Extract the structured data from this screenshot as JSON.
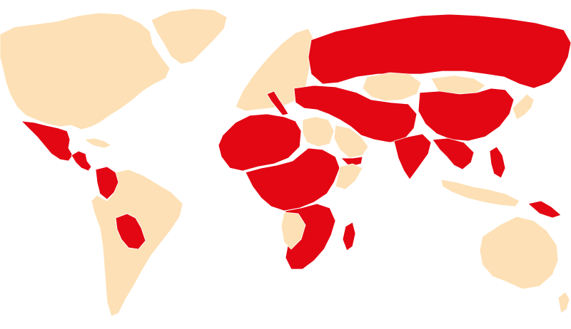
{
  "colors": {
    "background": "#ffffff",
    "highlighted": "#e30613",
    "other": "#fde0b5",
    "border": "#ffffff"
  },
  "regions": [
    {
      "id": "greenland",
      "status": "other"
    },
    {
      "id": "north-america",
      "status": "other"
    },
    {
      "id": "mexico",
      "status": "highlighted"
    },
    {
      "id": "central-america",
      "status": "highlighted"
    },
    {
      "id": "cuba-caribbean",
      "status": "other"
    },
    {
      "id": "colombia",
      "status": "highlighted"
    },
    {
      "id": "bolivia",
      "status": "highlighted"
    },
    {
      "id": "south-america",
      "status": "other"
    },
    {
      "id": "europe-north",
      "status": "other"
    },
    {
      "id": "italy",
      "status": "highlighted"
    },
    {
      "id": "russia",
      "status": "highlighted"
    },
    {
      "id": "kazakhstan",
      "status": "other"
    },
    {
      "id": "mongolia",
      "status": "other"
    },
    {
      "id": "middle-east-asia",
      "status": "highlighted"
    },
    {
      "id": "arabia",
      "status": "other"
    },
    {
      "id": "yemen",
      "status": "highlighted"
    },
    {
      "id": "china",
      "status": "highlighted"
    },
    {
      "id": "india",
      "status": "highlighted"
    },
    {
      "id": "japan",
      "status": "other"
    },
    {
      "id": "southeast-asia",
      "status": "highlighted"
    },
    {
      "id": "indonesia",
      "status": "other"
    },
    {
      "id": "philippines",
      "status": "highlighted"
    },
    {
      "id": "papua-new-guinea",
      "status": "highlighted"
    },
    {
      "id": "australia",
      "status": "other"
    },
    {
      "id": "new-zealand",
      "status": "other"
    },
    {
      "id": "north-africa",
      "status": "highlighted"
    },
    {
      "id": "libya-egypt",
      "status": "other"
    },
    {
      "id": "central-africa",
      "status": "highlighted"
    },
    {
      "id": "horn-of-africa",
      "status": "other"
    },
    {
      "id": "southern-africa",
      "status": "highlighted"
    },
    {
      "id": "namibia-botswana",
      "status": "other"
    },
    {
      "id": "madagascar",
      "status": "highlighted"
    }
  ]
}
